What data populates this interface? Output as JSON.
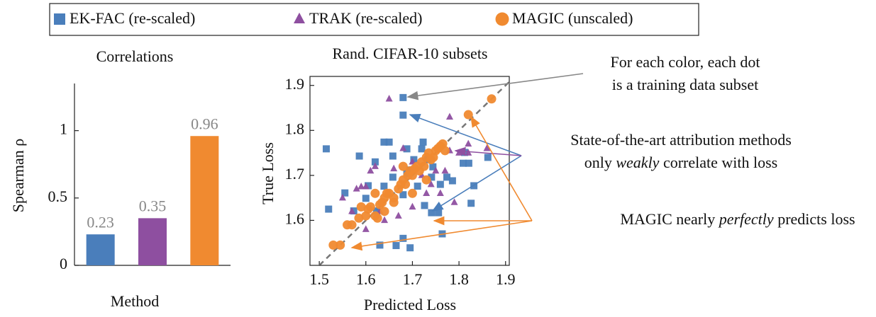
{
  "chart_data": [
    {
      "type": "bar",
      "title": "Correlations",
      "ylabel": "Spearman ρ",
      "xlabel": "Method",
      "categories": [
        null,
        null,
        null
      ],
      "values": [
        0.23,
        0.35,
        0.96
      ],
      "colors": [
        "#4a7ebb",
        "#8e4fa0",
        "#f08a30"
      ],
      "ylim": [
        0,
        1.35
      ],
      "yticks": [
        0,
        0.5,
        1
      ],
      "grid": false
    },
    {
      "type": "scatter",
      "title": "Rand. CIFAR-10 subsets",
      "xlabel": "Predicted Loss",
      "ylabel": "True Loss",
      "xlim": [
        1.48,
        1.908
      ],
      "ylim": [
        1.5,
        1.92
      ],
      "xticks": [
        1.5,
        1.6,
        1.7,
        1.8,
        1.9
      ],
      "yticks": [
        1.6,
        1.7,
        1.8,
        1.9
      ],
      "identity_line": true,
      "grid": false,
      "legend": "top",
      "series": [
        {
          "name": "EK-FAC (re-scaled)",
          "color": "#4a7ebb",
          "marker": "square",
          "x": [
            1.515,
            1.68,
            1.68,
            1.555,
            1.72,
            1.658,
            1.6,
            1.68,
            1.658,
            1.744,
            1.774,
            1.756,
            1.711,
            1.623,
            1.639,
            1.695,
            1.726,
            1.832,
            1.764,
            1.741,
            1.733,
            1.605,
            1.688,
            1.695,
            1.826,
            1.812,
            1.65,
            1.688,
            1.786,
            1.809,
            1.723,
            1.741,
            1.821,
            1.862,
            1.703,
            1.574,
            1.586,
            1.639,
            1.665,
            1.63,
            1.68,
            1.52,
            1.76,
            1.62
          ],
          "y": [
            1.759,
            1.873,
            1.834,
            1.661,
            1.759,
            1.743,
            1.649,
            1.657,
            1.696,
            1.719,
            1.696,
            1.617,
            1.676,
            1.621,
            1.676,
            1.712,
            1.633,
            1.677,
            1.57,
            1.617,
            1.735,
            1.677,
            1.704,
            1.539,
            1.638,
            1.751,
            1.774,
            1.759,
            1.688,
            1.727,
            1.774,
            1.696,
            1.727,
            1.74,
            1.735,
            1.621,
            1.743,
            1.774,
            1.544,
            1.545,
            1.56,
            1.625,
            1.68,
            1.73
          ]
        },
        {
          "name": "TRAK (re-scaled)",
          "color": "#8e4fa0",
          "marker": "triangle",
          "x": [
            1.65,
            1.78,
            1.59,
            1.6,
            1.62,
            1.64,
            1.67,
            1.68,
            1.7,
            1.72,
            1.75,
            1.78,
            1.8,
            1.82,
            1.73,
            1.76,
            1.6,
            1.55,
            1.66,
            1.7,
            1.74,
            1.63,
            1.58,
            1.57,
            1.79,
            1.77,
            1.61,
            1.74,
            1.82,
            1.86
          ],
          "y": [
            1.87,
            1.83,
            1.675,
            1.675,
            1.72,
            1.6,
            1.61,
            1.76,
            1.63,
            1.7,
            1.71,
            1.755,
            1.75,
            1.75,
            1.66,
            1.66,
            1.58,
            1.65,
            1.715,
            1.73,
            1.74,
            1.62,
            1.67,
            1.62,
            1.64,
            1.71,
            1.71,
            1.68,
            1.77,
            1.76
          ]
        },
        {
          "name": "MAGIC (unscaled)",
          "color": "#f08a30",
          "marker": "circle",
          "x": [
            1.53,
            1.545,
            1.56,
            1.57,
            1.585,
            1.6,
            1.605,
            1.61,
            1.62,
            1.625,
            1.63,
            1.635,
            1.64,
            1.645,
            1.65,
            1.66,
            1.67,
            1.675,
            1.68,
            1.685,
            1.69,
            1.695,
            1.7,
            1.705,
            1.71,
            1.715,
            1.72,
            1.725,
            1.73,
            1.735,
            1.74,
            1.745,
            1.75,
            1.755,
            1.76,
            1.765,
            1.77,
            1.68,
            1.66,
            1.62,
            1.59,
            1.73,
            1.82,
            1.87,
            1.7,
            1.64
          ],
          "y": [
            1.545,
            1.545,
            1.59,
            1.59,
            1.605,
            1.61,
            1.625,
            1.63,
            1.61,
            1.605,
            1.635,
            1.64,
            1.65,
            1.66,
            1.66,
            1.65,
            1.67,
            1.68,
            1.69,
            1.68,
            1.7,
            1.71,
            1.7,
            1.715,
            1.72,
            1.71,
            1.73,
            1.72,
            1.74,
            1.75,
            1.735,
            1.74,
            1.755,
            1.76,
            1.765,
            1.77,
            1.755,
            1.72,
            1.64,
            1.66,
            1.63,
            1.69,
            1.835,
            1.87,
            1.66,
            1.62
          ]
        }
      ],
      "annotations": [
        {
          "lines": [
            "For each color, each dot",
            "is a training data subset"
          ]
        },
        {
          "lines": [
            "State-of-the-art attribution methods"
          ],
          "parts": [
            "only ",
            "weakly",
            " correlate with loss"
          ]
        },
        {
          "parts": [
            "MAGIC nearly ",
            "perfectly",
            " predicts loss"
          ]
        }
      ]
    }
  ]
}
